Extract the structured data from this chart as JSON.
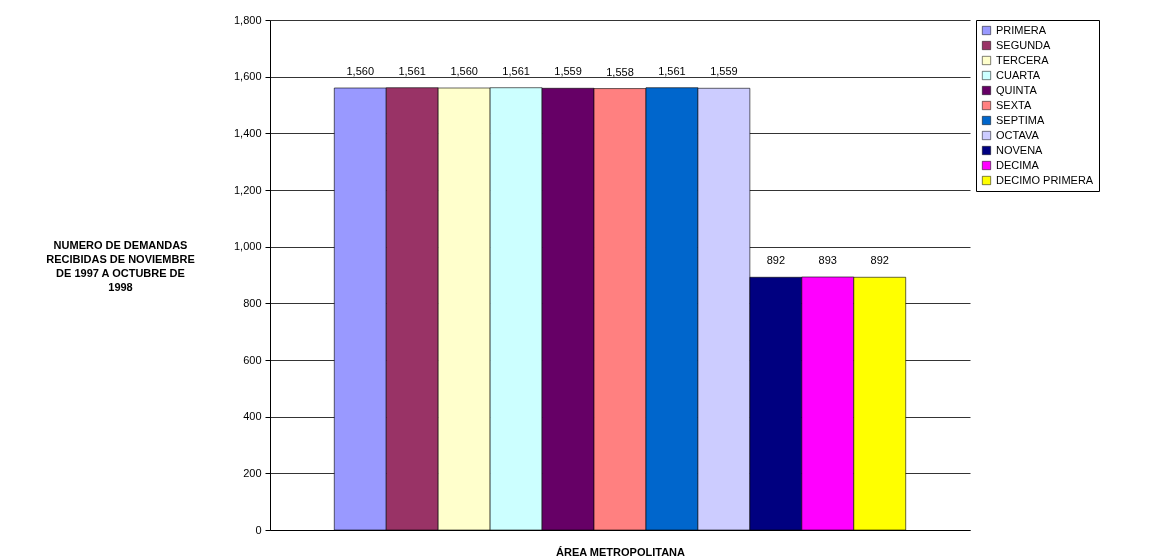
{
  "chart_data": {
    "type": "bar",
    "categories": [
      null
    ],
    "xlabel": "ÁREA METROPOLITANA",
    "ylabel": "NUMERO DE DEMANDAS RECIBIDAS DE NOVIEMBRE DE 1997 A OCTUBRE DE 1998",
    "ylim": [
      0,
      1800
    ],
    "yticks": [
      0,
      200,
      400,
      600,
      800,
      {
        "value": 1000,
        "label": "1,000"
      },
      {
        "value": 1200,
        "label": "1,200"
      },
      {
        "value": 1400,
        "label": "1,400"
      },
      {
        "value": 1600,
        "label": "1,600"
      },
      {
        "value": 1800,
        "label": "1,800"
      }
    ],
    "grid": "y",
    "legend": "right",
    "series": [
      {
        "name": "PRIMERA",
        "color": "#9999ff",
        "values": [
          1560
        ],
        "value_labels": [
          "1,560"
        ]
      },
      {
        "name": "SEGUNDA",
        "color": "#993366",
        "values": [
          1561
        ],
        "value_labels": [
          "1,561"
        ]
      },
      {
        "name": "TERCERA",
        "color": "#ffffcc",
        "values": [
          1560
        ],
        "value_labels": [
          "1,560"
        ]
      },
      {
        "name": "CUARTA",
        "color": "#ccffff",
        "values": [
          1561
        ],
        "value_labels": [
          "1,561"
        ]
      },
      {
        "name": "QUINTA",
        "color": "#660066",
        "values": [
          1559
        ],
        "value_labels": [
          "1,559"
        ]
      },
      {
        "name": "SEXTA",
        "color": "#ff8080",
        "values": [
          1558
        ],
        "value_labels": [
          "1,558"
        ]
      },
      {
        "name": "SEPTIMA",
        "color": "#0066cc",
        "values": [
          1561
        ],
        "value_labels": [
          "1,561"
        ]
      },
      {
        "name": "OCTAVA",
        "color": "#ccccff",
        "values": [
          1559
        ],
        "value_labels": [
          "1,559"
        ]
      },
      {
        "name": "NOVENA",
        "color": "#000080",
        "values": [
          892
        ],
        "value_labels": [
          "892"
        ]
      },
      {
        "name": "DECIMA",
        "color": "#ff00ff",
        "values": [
          893
        ],
        "value_labels": [
          "893"
        ]
      },
      {
        "name": "DECIMO PRIMERA",
        "color": "#ffff00",
        "values": [
          892
        ],
        "value_labels": [
          "892"
        ]
      }
    ]
  }
}
